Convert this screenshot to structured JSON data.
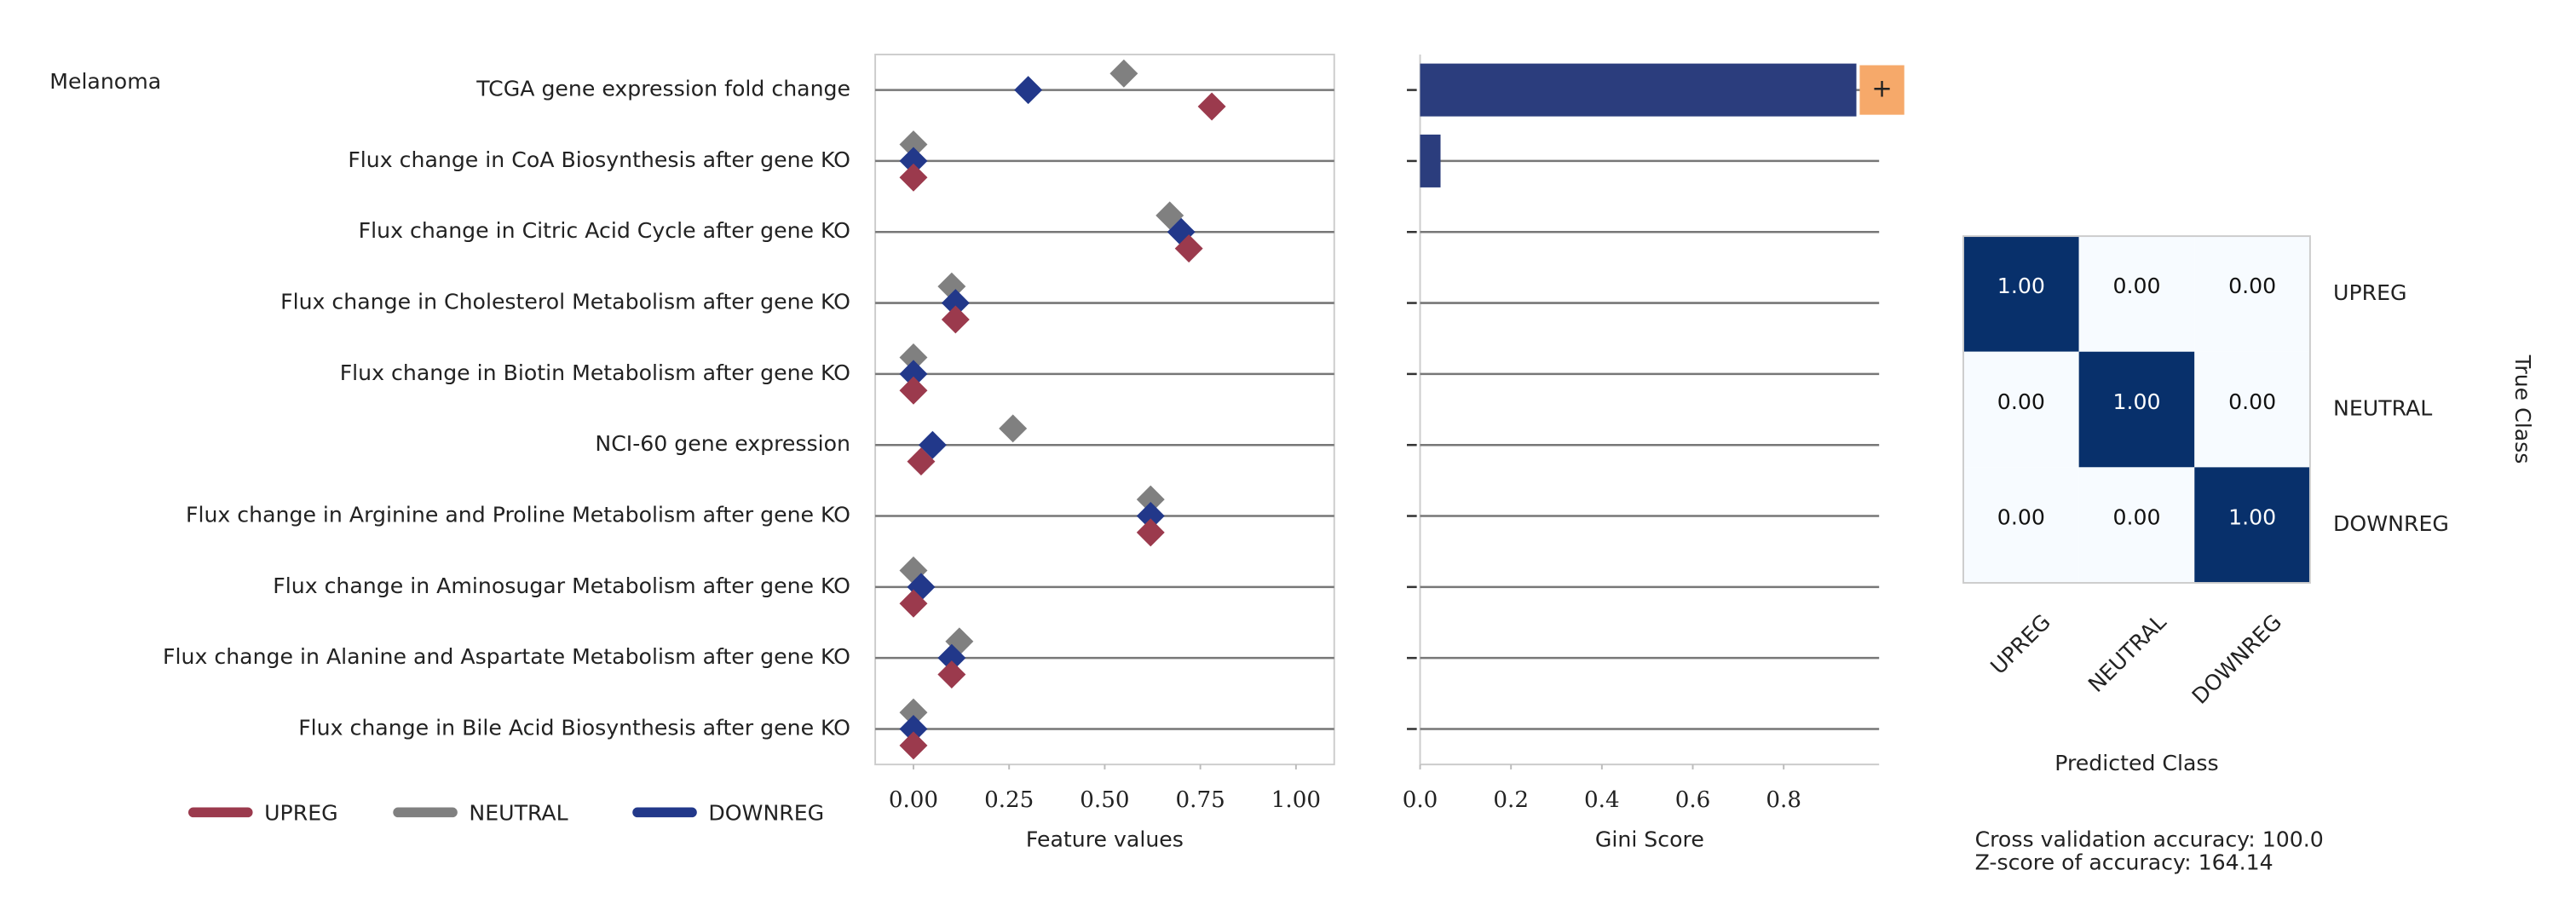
{
  "title": "Melanoma",
  "chart_data": [
    {
      "type": "strip",
      "categories": [
        "TCGA gene expression fold change",
        "Flux change in CoA Biosynthesis after gene KO",
        "Flux change in Citric Acid Cycle after gene KO",
        "Flux change in Cholesterol Metabolism after gene KO",
        "Flux change in Biotin Metabolism after gene KO",
        "NCI-60 gene expression",
        "Flux change in Arginine and Proline Metabolism after gene KO",
        "Flux change in Aminosugar Metabolism after gene KO",
        "Flux change in Alanine and Aspartate Metabolism after gene KO",
        "Flux change in Bile Acid Biosynthesis after gene KO"
      ],
      "series": [
        {
          "name": "UPREG",
          "color": "#9b3a4d",
          "values": [
            0.78,
            0,
            0.72,
            0.11,
            0,
            0.02,
            0.62,
            0,
            0.1,
            0
          ]
        },
        {
          "name": "NEUTRAL",
          "color": "#808080",
          "values": [
            0.55,
            0,
            0.67,
            0.1,
            0,
            0.26,
            0.62,
            0,
            0.12,
            0
          ]
        },
        {
          "name": "DOWNREG",
          "color": "#22388a",
          "values": [
            0.3,
            0,
            0.7,
            0.11,
            0,
            0.05,
            0.62,
            0.02,
            0.1,
            0
          ]
        }
      ],
      "xlim": [
        -0.1,
        1.1
      ],
      "xticks": [
        {
          "value": 0,
          "label": "0.00"
        },
        {
          "value": 0.25,
          "label": "0.25"
        },
        {
          "value": 0.5,
          "label": "0.50"
        },
        {
          "value": 0.75,
          "label": "0.75"
        },
        {
          "value": 1,
          "label": "1.00"
        }
      ],
      "xlabel": "Feature values"
    },
    {
      "type": "hbar",
      "values": [
        0.96,
        0.045,
        0,
        0,
        0,
        0,
        0,
        0,
        0,
        0
      ],
      "color": "#2b3d7d",
      "xlim": [
        0,
        1.01
      ],
      "xticks": [
        {
          "value": 0,
          "label": "0.0"
        },
        0.2,
        0.4,
        0.6,
        0.8
      ],
      "xlabel": "Gini Score",
      "annotations": [
        {
          "text": "+",
          "color": "#f6a96a"
        }
      ]
    },
    {
      "type": "heatmap",
      "x": [
        "UPREG",
        "NEUTRAL",
        "DOWNREG"
      ],
      "y": [
        "UPREG",
        "NEUTRAL",
        "DOWNREG"
      ],
      "values": [
        [
          1,
          0,
          0
        ],
        [
          0,
          1,
          0
        ],
        [
          0,
          0,
          1
        ]
      ],
      "value_labels": [
        [
          "1.00",
          "0.00",
          "0.00"
        ],
        [
          "0.00",
          "1.00",
          "0.00"
        ],
        [
          "0.00",
          "0.00",
          "1.00"
        ]
      ],
      "colormap": [
        "#f7fbff",
        "#08306b"
      ],
      "xlabel": "Predicted Class",
      "ylabel": "True Class"
    }
  ],
  "footer": [
    "Cross validation accuracy: 100.0",
    "Z-score of accuracy: 164.14"
  ]
}
